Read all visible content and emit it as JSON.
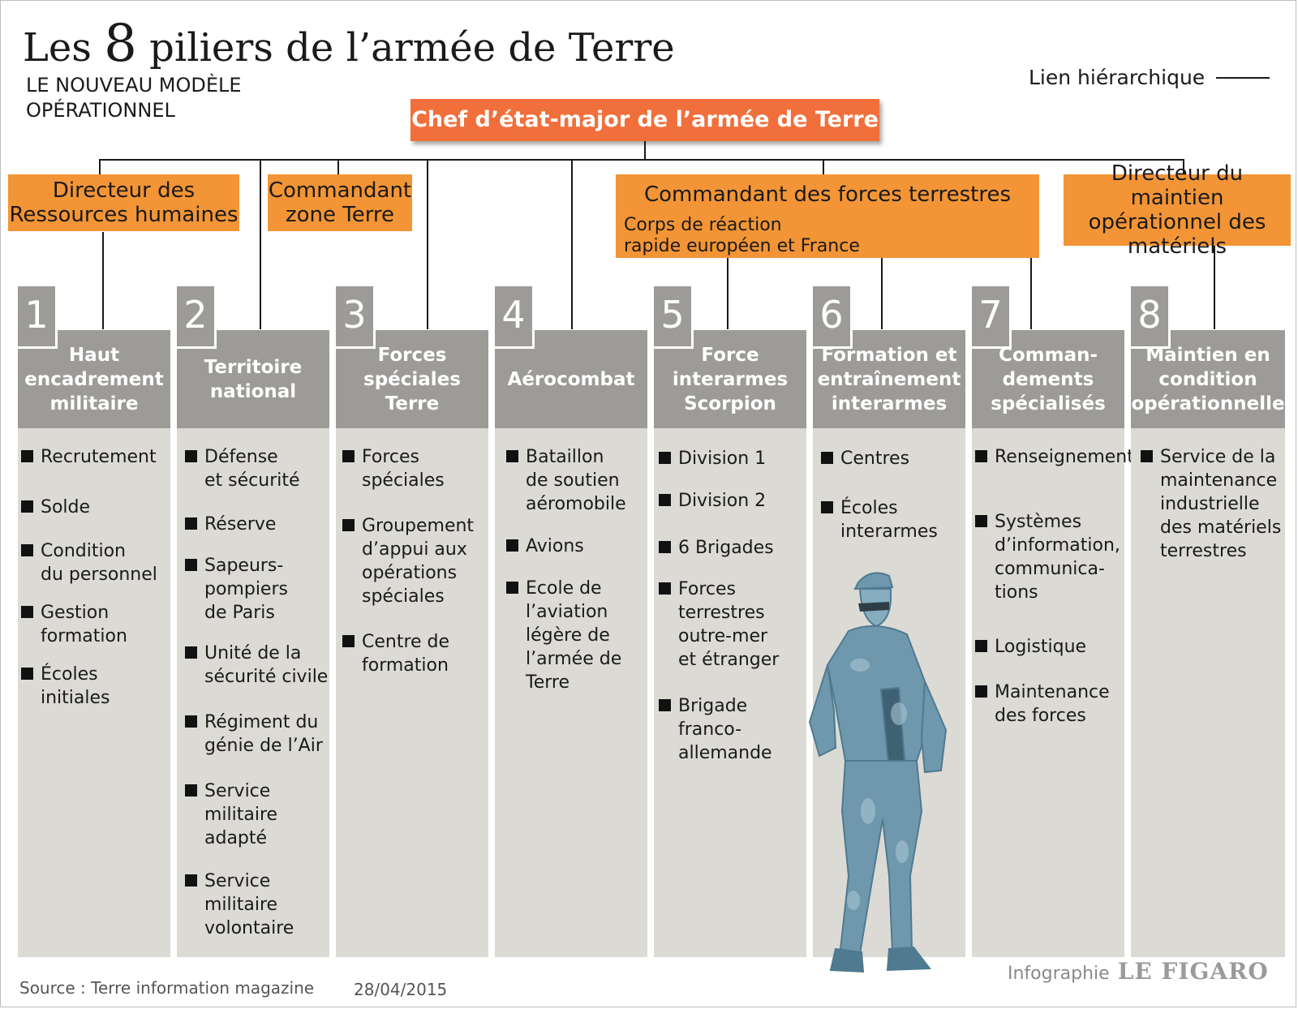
{
  "title": {
    "prefix": "Les ",
    "number": "8",
    "suffix": " piliers de l’armée de Terre"
  },
  "subtitle": "LE NOUVEAU MODÈLE OPÉRATIONNEL",
  "legend": {
    "label": "Lien hiérarchique"
  },
  "chief": "Chef d’état-major de l’armée de Terre",
  "directors": {
    "drh": "Directeur des Ressources humaines",
    "zone": "Commandant zone Terre",
    "cft": "Commandant des forces terrestres",
    "cft_sub": "Corps de réaction\nrapide européen et France",
    "mco": "Directeur du maintien opérationnel des matériels"
  },
  "pillars": [
    {
      "number": "1",
      "title": "Haut encadrement militaire",
      "items": [
        "Recrutement",
        "Solde",
        "Condition\ndu personnel",
        "Gestion\nformation",
        "Écoles\ninitiales"
      ]
    },
    {
      "number": "2",
      "title": "Territoire national",
      "items": [
        "Défense\net sécurité",
        "Réserve",
        "Sapeurs-\npompiers\nde Paris",
        "Unité de la\nsécurité civile",
        "Régiment du\ngénie de l’Air",
        "Service\nmilitaire\nadapté",
        "Service\nmilitaire\nvolontaire"
      ]
    },
    {
      "number": "3",
      "title": "Forces spéciales Terre",
      "items": [
        "Forces\nspéciales",
        "Groupement\nd’appui aux\nopérations\nspéciales",
        "Centre de\nformation"
      ]
    },
    {
      "number": "4",
      "title": "Aérocombat",
      "items": [
        "Bataillon\nde soutien\naéromobile",
        "Avions",
        "Ecole de\nl’aviation\nlégère de\nl’armée de\nTerre"
      ]
    },
    {
      "number": "5",
      "title": "Force interarmes Scorpion",
      "items": [
        "Division 1",
        "Division 2",
        "6 Brigades",
        "Forces\nterrestres\noutre-mer\net étranger",
        "Brigade\nfranco-\nallemande"
      ]
    },
    {
      "number": "6",
      "title": "Formation et entraînement interarmes",
      "items": [
        "Centres",
        "Écoles\ninterarmes"
      ]
    },
    {
      "number": "7",
      "title": "Comman-dements spécialisés",
      "items": [
        "Renseignement",
        "Systèmes\nd’information,\ncommunica-\ntions",
        "Logistique",
        "Maintenance\ndes forces"
      ]
    },
    {
      "number": "8",
      "title": "Maintien en condition opérationnelle",
      "items": [
        "Service de la\nmaintenance\nindustrielle\ndes matériels\nterrestres"
      ]
    }
  ],
  "footer": {
    "source": "Source : Terre information magazine",
    "date": "28/04/2015",
    "credit_label": "Infographie",
    "credit_brand": "LE FIGARO"
  },
  "colors": {
    "orange": "#f39536",
    "chief": "#f16f3b",
    "header_gray": "#9d9b97",
    "column_bg": "#dcdad5",
    "soldier": "#6f98ad"
  }
}
